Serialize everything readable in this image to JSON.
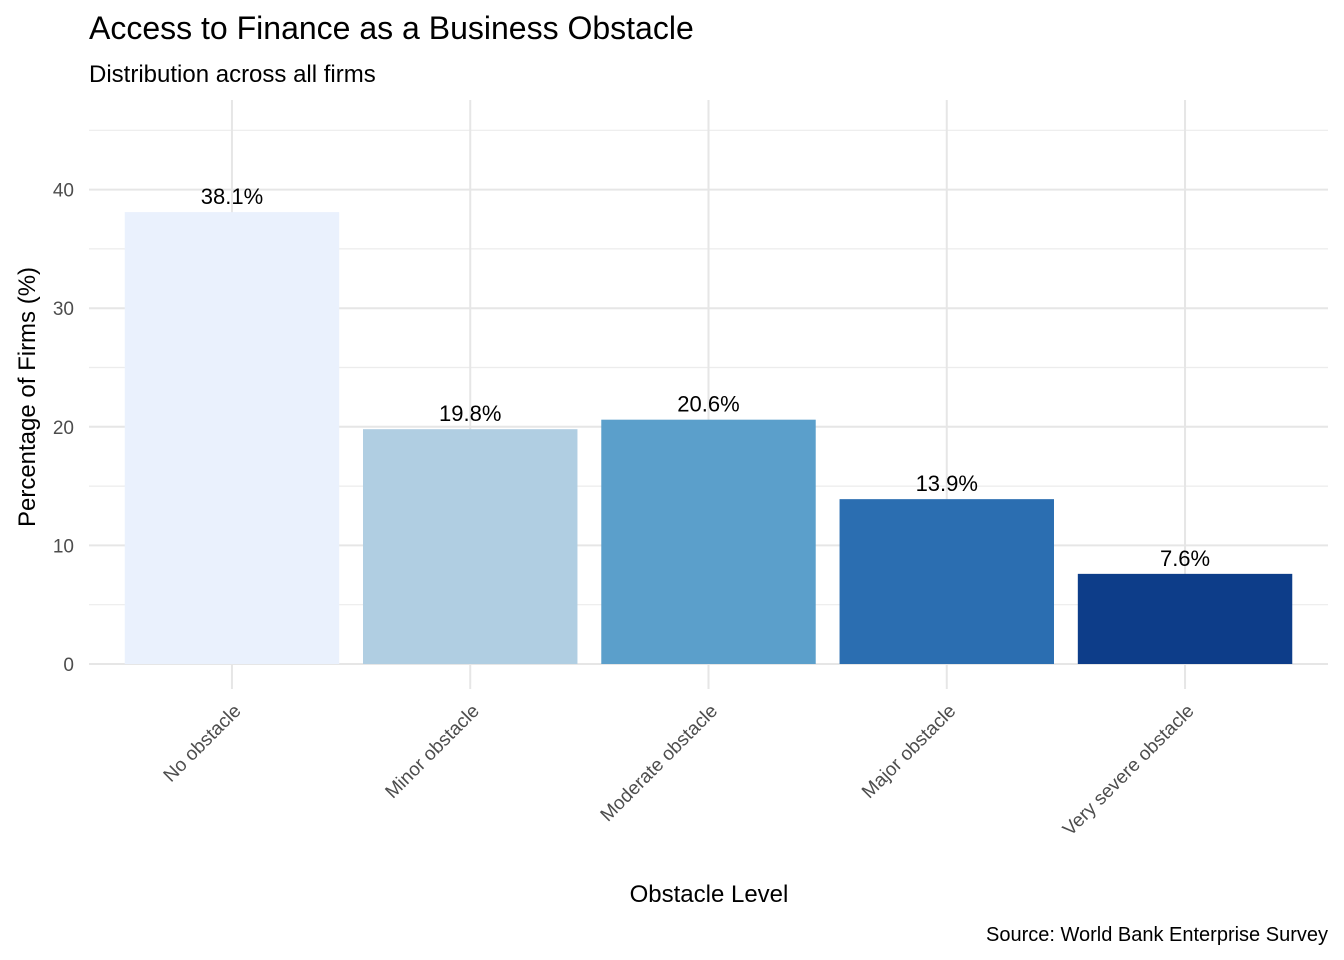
{
  "chart_data": {
    "type": "bar",
    "title": "Access to Finance as a Business Obstacle",
    "subtitle": "Distribution across all firms",
    "xlabel": "Obstacle Level",
    "ylabel": "Percentage of Firms (%)",
    "caption": "Source: World Bank Enterprise Survey",
    "categories": [
      "No obstacle",
      "Minor obstacle",
      "Moderate obstacle",
      "Major obstacle",
      "Very severe obstacle"
    ],
    "values": [
      38.1,
      19.8,
      20.6,
      13.9,
      7.6
    ],
    "data_labels": [
      "38.1%",
      "19.8%",
      "20.6%",
      "13.9%",
      "7.6%"
    ],
    "colors": [
      "#eaf1fd",
      "#b0cee2",
      "#5b9fcb",
      "#2b6eb1",
      "#0d3d89"
    ],
    "ylim": [
      0,
      46
    ],
    "yticks": [
      0,
      10,
      20,
      30,
      40
    ],
    "grid": true,
    "legend": "none"
  }
}
